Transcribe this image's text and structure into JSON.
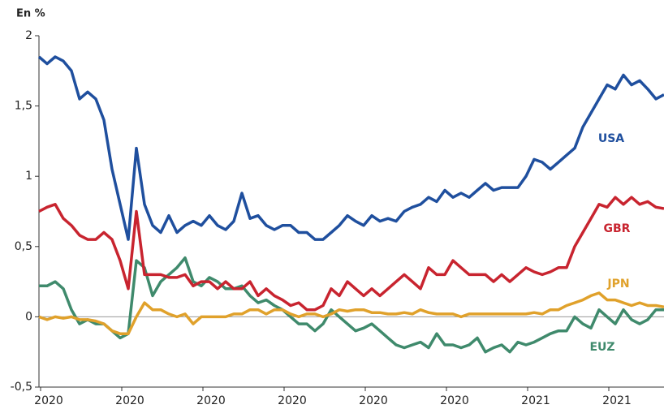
{
  "chart_data": {
    "type": "line",
    "ylabel": "En %",
    "categories": [
      null,
      "2020",
      null,
      null,
      null,
      null,
      null,
      null,
      null,
      null,
      null,
      "2020",
      null,
      null,
      null,
      null,
      null,
      null,
      null,
      null,
      null,
      "2020",
      null,
      null,
      null,
      null,
      null,
      null,
      null,
      null,
      null,
      "2020",
      null,
      null,
      null,
      null,
      null,
      null,
      null,
      null,
      null,
      "2020",
      null,
      null,
      null,
      null,
      null,
      null,
      null,
      null,
      null,
      "2020",
      null,
      null,
      null,
      null,
      null,
      null,
      null,
      null,
      null,
      "2021",
      null,
      null,
      null,
      null,
      null,
      null,
      null,
      null,
      null,
      "2021",
      null,
      null,
      null,
      null,
      null,
      null
    ],
    "ylim": [
      -0.5,
      2
    ],
    "yticks": [
      {
        "value": -0.5,
        "label": "-0,5"
      },
      0,
      {
        "value": 0.5,
        "label": "0,5"
      },
      1,
      {
        "value": 1.5,
        "label": "1,5"
      },
      2
    ],
    "series": [
      {
        "name": "USA",
        "color": "#1f4f9e",
        "values": [
          1.85,
          1.8,
          1.85,
          1.82,
          1.75,
          1.55,
          1.6,
          1.55,
          1.4,
          1.05,
          0.8,
          0.55,
          1.2,
          0.8,
          0.65,
          0.6,
          0.72,
          0.6,
          0.65,
          0.68,
          0.65,
          0.72,
          0.65,
          0.62,
          0.68,
          0.88,
          0.7,
          0.72,
          0.65,
          0.62,
          0.65,
          0.65,
          0.6,
          0.6,
          0.55,
          0.55,
          0.6,
          0.65,
          0.72,
          0.68,
          0.65,
          0.72,
          0.68,
          0.7,
          0.68,
          0.75,
          0.78,
          0.8,
          0.85,
          0.82,
          0.9,
          0.85,
          0.88,
          0.85,
          0.9,
          0.95,
          0.9,
          0.92,
          0.92,
          0.92,
          1.0,
          1.12,
          1.1,
          1.05,
          1.1,
          1.15,
          1.2,
          1.35,
          1.45,
          1.55,
          1.65,
          1.62,
          1.72,
          1.65,
          1.68,
          1.62,
          1.55,
          1.58
        ]
      },
      {
        "name": "GBR",
        "color": "#c8242f",
        "values": [
          0.75,
          0.78,
          0.8,
          0.7,
          0.65,
          0.58,
          0.55,
          0.55,
          0.6,
          0.55,
          0.4,
          0.2,
          0.75,
          0.3,
          0.3,
          0.3,
          0.28,
          0.28,
          0.3,
          0.22,
          0.25,
          0.25,
          0.2,
          0.25,
          0.2,
          0.2,
          0.25,
          0.15,
          0.2,
          0.15,
          0.12,
          0.08,
          0.1,
          0.05,
          0.05,
          0.08,
          0.2,
          0.15,
          0.25,
          0.2,
          0.15,
          0.2,
          0.15,
          0.2,
          0.25,
          0.3,
          0.25,
          0.2,
          0.35,
          0.3,
          0.3,
          0.4,
          0.35,
          0.3,
          0.3,
          0.3,
          0.25,
          0.3,
          0.25,
          0.3,
          0.35,
          0.32,
          0.3,
          0.32,
          0.35,
          0.35,
          0.5,
          0.6,
          0.7,
          0.8,
          0.78,
          0.85,
          0.8,
          0.85,
          0.8,
          0.82,
          0.78,
          0.77
        ]
      },
      {
        "name": "JPN",
        "color": "#e0a12b",
        "values": [
          0,
          -0.02,
          0,
          -0.01,
          0,
          -0.02,
          -0.02,
          -0.03,
          -0.05,
          -0.1,
          -0.12,
          -0.12,
          0,
          0.1,
          0.05,
          0.05,
          0.02,
          0,
          0.02,
          -0.05,
          0,
          0,
          0,
          0,
          0.02,
          0.02,
          0.05,
          0.05,
          0.02,
          0.05,
          0.05,
          0.02,
          0,
          0.02,
          0.02,
          0,
          0.02,
          0.05,
          0.04,
          0.05,
          0.05,
          0.03,
          0.03,
          0.02,
          0.02,
          0.03,
          0.02,
          0.05,
          0.03,
          0.02,
          0.02,
          0.02,
          0,
          0.02,
          0.02,
          0.02,
          0.02,
          0.02,
          0.02,
          0.02,
          0.02,
          0.03,
          0.02,
          0.05,
          0.05,
          0.08,
          0.1,
          0.12,
          0.15,
          0.17,
          0.12,
          0.12,
          0.1,
          0.08,
          0.1,
          0.08,
          0.08,
          0.07
        ]
      },
      {
        "name": "EUZ",
        "color": "#3f8a6c",
        "values": [
          0.22,
          0.22,
          0.25,
          0.2,
          0.05,
          -0.05,
          -0.02,
          -0.05,
          -0.05,
          -0.1,
          -0.15,
          -0.12,
          0.4,
          0.35,
          0.15,
          0.25,
          0.3,
          0.35,
          0.42,
          0.25,
          0.22,
          0.28,
          0.25,
          0.2,
          0.2,
          0.22,
          0.15,
          0.1,
          0.12,
          0.08,
          0.05,
          0,
          -0.05,
          -0.05,
          -0.1,
          -0.05,
          0.05,
          0,
          -0.05,
          -0.1,
          -0.08,
          -0.05,
          -0.1,
          -0.15,
          -0.2,
          -0.22,
          -0.2,
          -0.18,
          -0.22,
          -0.12,
          -0.2,
          -0.2,
          -0.22,
          -0.2,
          -0.15,
          -0.25,
          -0.22,
          -0.2,
          -0.25,
          -0.18,
          -0.2,
          -0.18,
          -0.15,
          -0.12,
          -0.1,
          -0.1,
          0,
          -0.05,
          -0.08,
          0.05,
          0,
          -0.05,
          0.05,
          -0.02,
          -0.05,
          -0.02,
          0.05,
          0.05
        ]
      }
    ]
  }
}
